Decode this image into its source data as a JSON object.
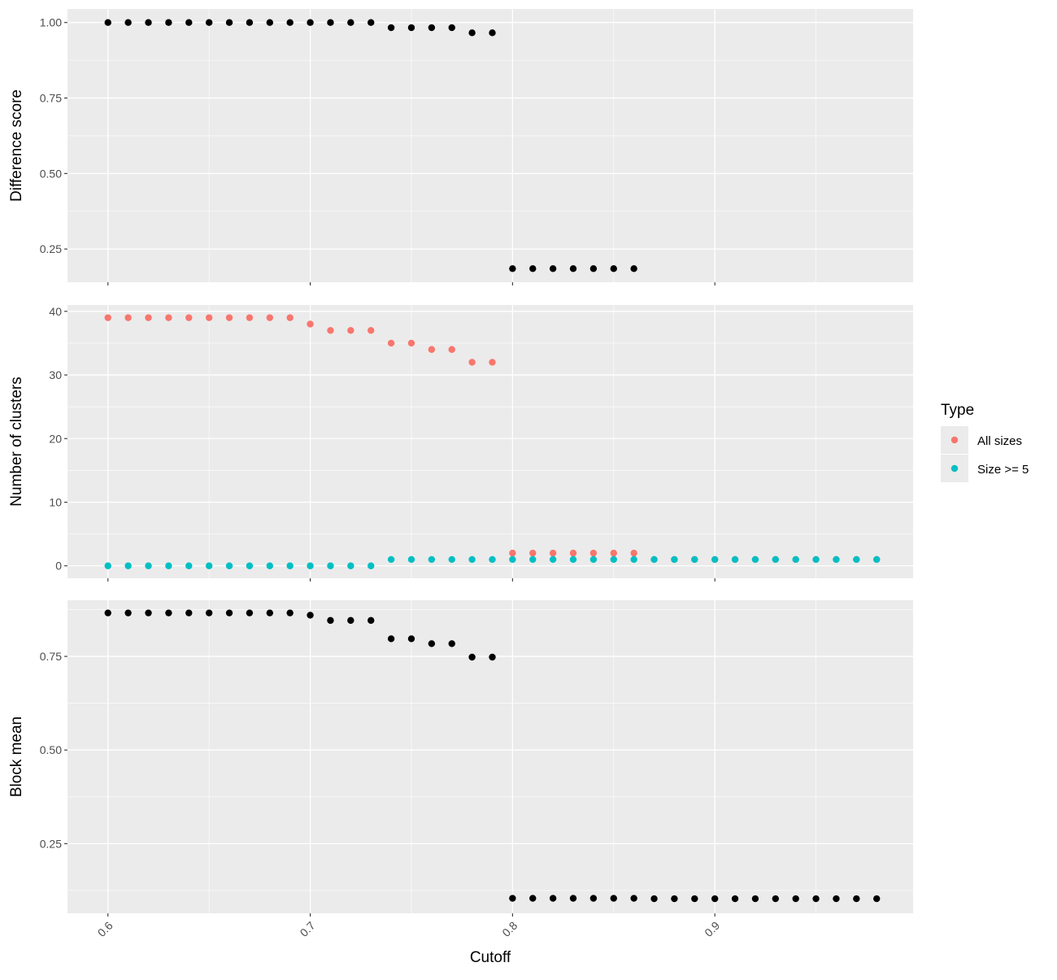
{
  "chart_data": [
    {
      "type": "scatter",
      "title": "",
      "xlabel": "",
      "ylabel": "Difference score",
      "xlim": [
        0.58,
        0.998
      ],
      "ylim": [
        0.14,
        1.045
      ],
      "x_ticks": [
        "0.6",
        "0.7",
        "0.8",
        "0.9"
      ],
      "y_ticks": [
        "0.25",
        "0.50",
        "0.75",
        "1.00"
      ],
      "grid": true,
      "series": [
        {
          "color": "#000000",
          "x": [
            0.6,
            0.61,
            0.62,
            0.63,
            0.64,
            0.65,
            0.66,
            0.67,
            0.68,
            0.69,
            0.7,
            0.71,
            0.72,
            0.73,
            0.74,
            0.75,
            0.76,
            0.77,
            0.78,
            0.79,
            0.8,
            0.81,
            0.82,
            0.83,
            0.84,
            0.85,
            0.86
          ],
          "y": [
            1.0,
            1.0,
            1.0,
            1.0,
            1.0,
            1.0,
            1.0,
            1.0,
            1.0,
            1.0,
            1.0,
            1.0,
            1.0,
            1.0,
            0.983,
            0.983,
            0.983,
            0.983,
            0.966,
            0.966,
            0.185,
            0.185,
            0.185,
            0.185,
            0.185,
            0.185,
            0.185
          ]
        }
      ]
    },
    {
      "type": "scatter",
      "title": "",
      "xlabel": "",
      "ylabel": "Number of clusters",
      "xlim": [
        0.58,
        0.998
      ],
      "ylim": [
        -1.95,
        41.0
      ],
      "x_ticks": [
        "0.6",
        "0.7",
        "0.8",
        "0.9"
      ],
      "y_ticks": [
        "0",
        "10",
        "20",
        "30",
        "40"
      ],
      "grid": true,
      "series": [
        {
          "name": "All sizes",
          "color": "#F8766D",
          "x": [
            0.6,
            0.61,
            0.62,
            0.63,
            0.64,
            0.65,
            0.66,
            0.67,
            0.68,
            0.69,
            0.7,
            0.71,
            0.72,
            0.73,
            0.74,
            0.75,
            0.76,
            0.77,
            0.78,
            0.79,
            0.8,
            0.81,
            0.82,
            0.83,
            0.84,
            0.85,
            0.86,
            0.87,
            0.88,
            0.89,
            0.9,
            0.91,
            0.92,
            0.93,
            0.94,
            0.95,
            0.96,
            0.97,
            0.98
          ],
          "y": [
            39,
            39,
            39,
            39,
            39,
            39,
            39,
            39,
            39,
            39,
            38,
            37,
            37,
            37,
            35,
            35,
            34,
            34,
            32,
            32,
            2,
            2,
            2,
            2,
            2,
            2,
            2,
            1,
            1,
            1,
            1,
            1,
            1,
            1,
            1,
            1,
            1,
            1,
            1
          ]
        },
        {
          "name": "Size >= 5",
          "color": "#00BFC4",
          "x": [
            0.6,
            0.61,
            0.62,
            0.63,
            0.64,
            0.65,
            0.66,
            0.67,
            0.68,
            0.69,
            0.7,
            0.71,
            0.72,
            0.73,
            0.74,
            0.75,
            0.76,
            0.77,
            0.78,
            0.79,
            0.8,
            0.81,
            0.82,
            0.83,
            0.84,
            0.85,
            0.86,
            0.87,
            0.88,
            0.89,
            0.9,
            0.91,
            0.92,
            0.93,
            0.94,
            0.95,
            0.96,
            0.97,
            0.98
          ],
          "y": [
            0,
            0,
            0,
            0,
            0,
            0,
            0,
            0,
            0,
            0,
            0,
            0,
            0,
            0,
            1,
            1,
            1,
            1,
            1,
            1,
            1,
            1,
            1,
            1,
            1,
            1,
            1,
            1,
            1,
            1,
            1,
            1,
            1,
            1,
            1,
            1,
            1,
            1,
            1
          ]
        }
      ]
    },
    {
      "type": "scatter",
      "title": "",
      "xlabel": "Cutoff",
      "ylabel": "Block mean",
      "xlim": [
        0.58,
        0.998
      ],
      "ylim": [
        0.064,
        0.9
      ],
      "x_ticks": [
        "0.6",
        "0.7",
        "0.8",
        "0.9"
      ],
      "y_ticks": [
        "0.25",
        "0.50",
        "0.75"
      ],
      "grid": true,
      "series": [
        {
          "color": "#000000",
          "x": [
            0.6,
            0.61,
            0.62,
            0.63,
            0.64,
            0.65,
            0.66,
            0.67,
            0.68,
            0.69,
            0.7,
            0.71,
            0.72,
            0.73,
            0.74,
            0.75,
            0.76,
            0.77,
            0.78,
            0.79,
            0.8,
            0.81,
            0.82,
            0.83,
            0.84,
            0.85,
            0.86,
            0.87,
            0.88,
            0.89,
            0.9,
            0.91,
            0.92,
            0.93,
            0.94,
            0.95,
            0.96,
            0.97,
            0.98
          ],
          "y": [
            0.866,
            0.866,
            0.866,
            0.866,
            0.866,
            0.866,
            0.866,
            0.866,
            0.866,
            0.866,
            0.86,
            0.846,
            0.846,
            0.846,
            0.797,
            0.797,
            0.784,
            0.784,
            0.748,
            0.748,
            0.104,
            0.104,
            0.104,
            0.104,
            0.104,
            0.104,
            0.104,
            0.103,
            0.103,
            0.103,
            0.103,
            0.103,
            0.103,
            0.103,
            0.103,
            0.103,
            0.103,
            0.103,
            0.103
          ]
        }
      ]
    }
  ],
  "legend": {
    "title": "Type",
    "placement": "right",
    "entries": [
      {
        "label": "All sizes",
        "color": "#F8766D"
      },
      {
        "label": "Size >= 5",
        "color": "#00BFC4"
      }
    ]
  },
  "colors": {
    "panel_background": "#EBEBEB",
    "grid_major": "#FFFFFF",
    "tick_text": "#4D4D4D"
  }
}
